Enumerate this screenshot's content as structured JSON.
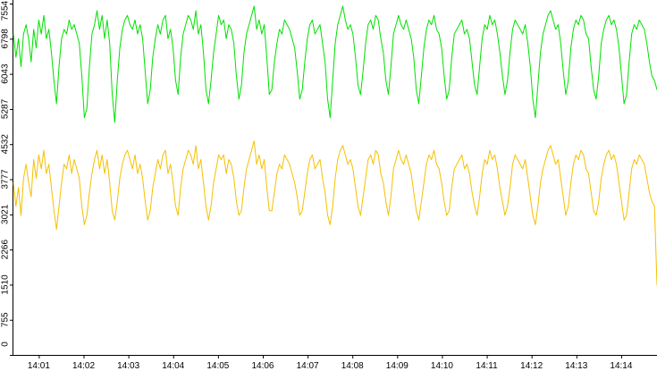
{
  "chart_data": {
    "type": "line",
    "title": "",
    "xlabel": "",
    "ylabel": "",
    "x_range": [
      "14:00:26",
      "14:14:48"
    ],
    "ylim": [
      0,
      7554
    ],
    "grid": false,
    "legend": "none",
    "x_ticks": [
      "14:01",
      "14:02",
      "14:03",
      "14:04",
      "14:05",
      "14:06",
      "14:07",
      "14:08",
      "14:09",
      "14:10",
      "14:11",
      "14:12",
      "14:13",
      "14:14"
    ],
    "y_ticks": [
      "0",
      "755",
      "1510",
      "2266",
      "3021",
      "3777",
      "4532",
      "5287",
      "6043",
      "6798",
      "7554"
    ],
    "series": [
      {
        "color": "#00e000",
        "values": [
          6900,
          6400,
          6800,
          6200,
          6900,
          7100,
          6800,
          6300,
          7000,
          6600,
          7200,
          6900,
          7300,
          6800,
          7000,
          6500,
          5900,
          5400,
          6200,
          6800,
          7000,
          6900,
          7200,
          7000,
          7100,
          6900,
          6700,
          6000,
          5100,
          5300,
          6200,
          6900,
          7100,
          7400,
          7000,
          7300,
          6800,
          7200,
          6700,
          5600,
          5000,
          5900,
          6600,
          7000,
          7200,
          7300,
          7100,
          7000,
          7200,
          6900,
          7100,
          6800,
          6100,
          5400,
          5700,
          6400,
          6800,
          7100,
          6900,
          7200,
          7300,
          6800,
          7000,
          6600,
          5900,
          5600,
          6400,
          6900,
          7100,
          7300,
          7200,
          7000,
          7400,
          6900,
          7100,
          6500,
          5700,
          5400,
          5900,
          6500,
          6900,
          7300,
          7100,
          7200,
          6800,
          7100,
          7000,
          6700,
          6000,
          5500,
          5800,
          6500,
          6900,
          7100,
          7300,
          7500,
          7000,
          7200,
          6900,
          7100,
          6400,
          5600,
          5700,
          6300,
          6700,
          7000,
          6900,
          7200,
          7100,
          7000,
          6800,
          6600,
          6100,
          5500,
          5700,
          6300,
          6800,
          7100,
          7200,
          6900,
          7000,
          7100,
          6700,
          6300,
          5500,
          5100,
          5900,
          6700,
          7100,
          7300,
          7500,
          7200,
          7000,
          7100,
          6900,
          6400,
          5800,
          5600,
          6100,
          6700,
          7100,
          7200,
          7000,
          7300,
          7200,
          6800,
          6500,
          5900,
          5600,
          6200,
          6900,
          7100,
          7300,
          7100,
          7000,
          7200,
          7000,
          6800,
          6400,
          5700,
          5400,
          6000,
          6600,
          7000,
          7200,
          7100,
          7300,
          7000,
          6900,
          6600,
          6000,
          5500,
          5700,
          6400,
          6900,
          7000,
          7100,
          7200,
          6900,
          7000,
          6800,
          6300,
          5800,
          5600,
          6200,
          6800,
          7100,
          7000,
          7300,
          7100,
          7200,
          6900,
          6500,
          6000,
          5600,
          5900,
          6500,
          7000,
          7200,
          7100,
          7000,
          6900,
          7100,
          6700,
          6200,
          5500,
          5100,
          5800,
          6500,
          6900,
          7100,
          7300,
          7400,
          7200,
          7000,
          7100,
          6700,
          6100,
          5600,
          5900,
          6600,
          7000,
          7200,
          7100,
          7300,
          7200,
          6900,
          6800,
          6200,
          5700,
          5500,
          6000,
          6700,
          7000,
          7200,
          7300,
          7100,
          7200,
          7000,
          6600,
          6000,
          5400,
          5600,
          6300,
          6900,
          7100,
          7000,
          7200,
          7100,
          7000,
          6700,
          6300,
          6000,
          5900,
          5700
        ]
      },
      {
        "color": "#f5c000",
        "values": [
          3700,
          3200,
          3600,
          3000,
          3800,
          4100,
          3700,
          3400,
          4200,
          3800,
          4300,
          4000,
          4400,
          3900,
          4100,
          3600,
          3100,
          2700,
          3200,
          3700,
          4100,
          4000,
          4300,
          3900,
          4200,
          4000,
          3800,
          3200,
          2800,
          3000,
          3500,
          3900,
          4200,
          4400,
          4000,
          4300,
          3900,
          4200,
          3700,
          3100,
          2900,
          3300,
          3800,
          4100,
          4300,
          4400,
          4200,
          4000,
          4300,
          3900,
          4100,
          3800,
          3300,
          2900,
          3100,
          3600,
          3900,
          4200,
          4000,
          4300,
          4400,
          3900,
          4100,
          3700,
          3200,
          3000,
          3600,
          4000,
          4200,
          4400,
          4300,
          4100,
          4500,
          4000,
          4200,
          3700,
          3200,
          2900,
          3200,
          3700,
          4000,
          4300,
          4200,
          4300,
          3900,
          4200,
          4100,
          3800,
          3300,
          3000,
          3100,
          3600,
          4000,
          4200,
          4400,
          4600,
          4100,
          4300,
          4000,
          4200,
          3600,
          3100,
          3100,
          3500,
          3900,
          4100,
          4000,
          4300,
          4200,
          4100,
          3900,
          3700,
          3400,
          3000,
          3100,
          3500,
          3900,
          4200,
          4300,
          4000,
          4100,
          4200,
          3800,
          3500,
          3000,
          2800,
          3200,
          3800,
          4200,
          4400,
          4500,
          4300,
          4100,
          4200,
          4000,
          3600,
          3200,
          3000,
          3400,
          3800,
          4200,
          4300,
          4100,
          4400,
          4300,
          3900,
          3700,
          3300,
          3000,
          3400,
          4000,
          4200,
          4400,
          4200,
          4100,
          4300,
          4100,
          3900,
          3500,
          3100,
          2900,
          3300,
          3700,
          4100,
          4300,
          4200,
          4400,
          4100,
          4000,
          3700,
          3300,
          3000,
          3100,
          3600,
          4000,
          4100,
          4200,
          4300,
          4000,
          4100,
          3900,
          3500,
          3200,
          3000,
          3400,
          3900,
          4200,
          4100,
          4400,
          4200,
          4300,
          4000,
          3600,
          3300,
          3000,
          3200,
          3600,
          4100,
          4300,
          4200,
          4100,
          4000,
          4200,
          3800,
          3400,
          3000,
          2800,
          3200,
          3700,
          4000,
          4200,
          4400,
          4500,
          4300,
          4100,
          4200,
          3800,
          3400,
          3000,
          3200,
          3700,
          4100,
          4300,
          4200,
          4400,
          4300,
          4000,
          3900,
          3500,
          3100,
          3000,
          3300,
          3800,
          4100,
          4300,
          4400,
          4200,
          4300,
          4100,
          3700,
          3300,
          2900,
          3000,
          3500,
          4000,
          4200,
          4100,
          4300,
          4200,
          4100,
          3800,
          3500,
          3300,
          3200,
          1500
        ]
      }
    ]
  }
}
